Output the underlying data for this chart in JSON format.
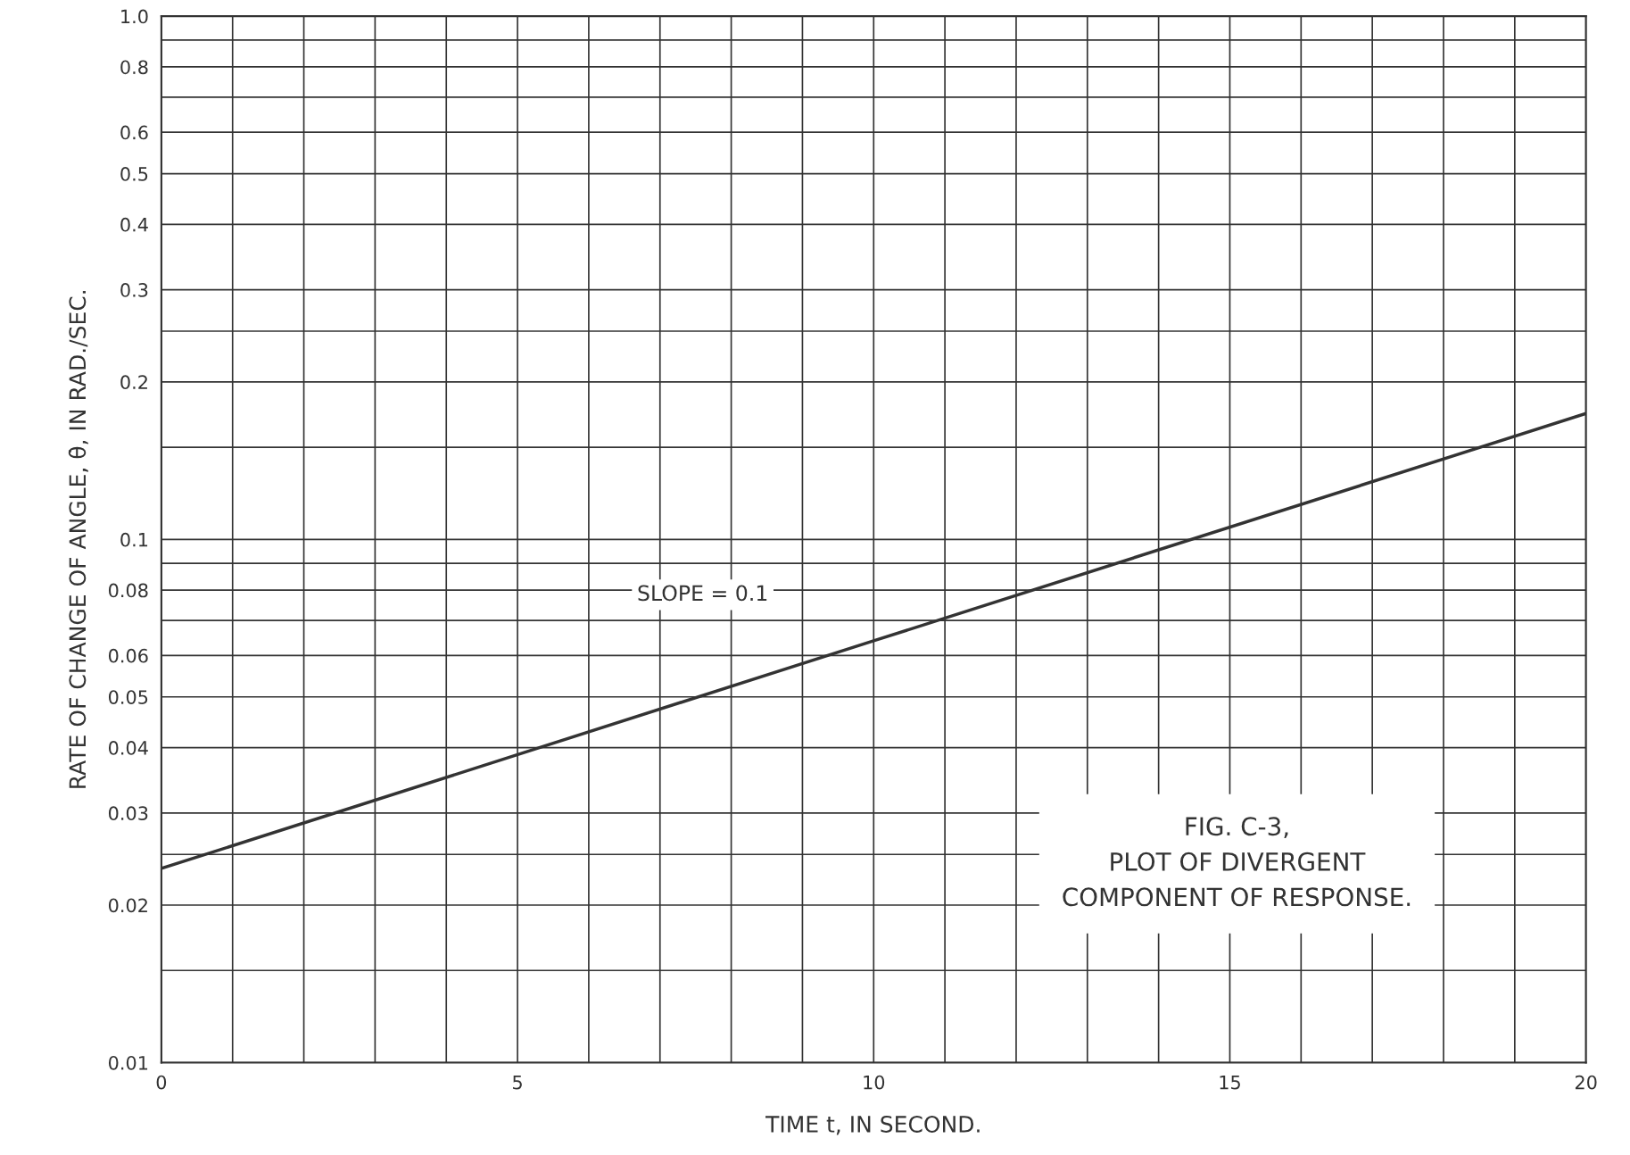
{
  "chart_data": {
    "type": "line",
    "xlabel": "TIME t, IN SECOND.",
    "ylabel": "RATE OF CHANGE OF ANGLE, θ̇, IN RAD./SEC.",
    "x": [
      0,
      10,
      20
    ],
    "series": [
      {
        "color": "#333333",
        "values": [
          0.0235,
          0.064,
          0.174
        ]
      }
    ],
    "log": "y",
    "grid": true,
    "marker": "none",
    "line_style": "solid",
    "xlim": [
      0,
      20
    ],
    "ylim": [
      0.01,
      1
    ],
    "xticks": [
      0,
      {
        "value": 1,
        "label": null
      },
      {
        "value": 2,
        "label": null
      },
      {
        "value": 3,
        "label": null
      },
      {
        "value": 4,
        "label": null
      },
      5,
      {
        "value": 6,
        "label": null
      },
      {
        "value": 7,
        "label": null
      },
      {
        "value": 8,
        "label": null
      },
      {
        "value": 9,
        "label": null
      },
      10,
      {
        "value": 11,
        "label": null
      },
      {
        "value": 12,
        "label": null
      },
      {
        "value": 13,
        "label": null
      },
      {
        "value": 14,
        "label": null
      },
      15,
      {
        "value": 16,
        "label": null
      },
      {
        "value": 17,
        "label": null
      },
      {
        "value": 18,
        "label": null
      },
      {
        "value": 19,
        "label": null
      },
      20
    ],
    "yticks": [
      0.01,
      {
        "value": 0.015,
        "label": null
      },
      0.02,
      {
        "value": 0.025,
        "label": null
      },
      0.03,
      0.04,
      0.05,
      0.06,
      {
        "value": 0.07,
        "label": null
      },
      0.08,
      {
        "value": 0.09,
        "label": null
      },
      0.1,
      {
        "value": 0.15,
        "label": null
      },
      0.2,
      {
        "value": 0.25,
        "label": null
      },
      0.3,
      0.4,
      0.5,
      0.6,
      {
        "value": 0.7,
        "label": null
      },
      0.8,
      {
        "value": 0.9,
        "label": null
      },
      {
        "value": 1,
        "label": "1.0"
      }
    ],
    "annotations": [
      "SLOPE = 0.1",
      "FIG. C-3,\nPLOT OF DIVERGENT\nCOMPONENT OF RESPONSE."
    ]
  }
}
